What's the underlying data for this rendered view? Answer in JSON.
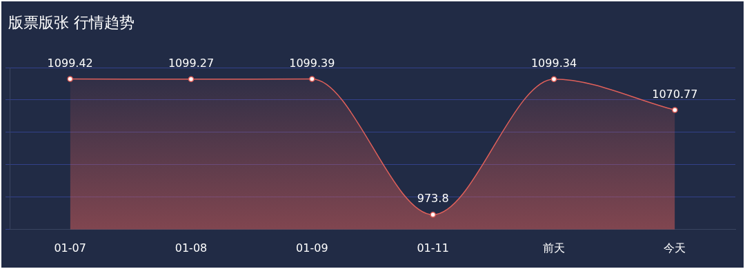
{
  "chart_data": {
    "type": "area",
    "title": "版票版张 行情趋势",
    "categories": [
      "01-07",
      "01-08",
      "01-09",
      "01-11",
      "前天",
      "今天"
    ],
    "series": [
      {
        "color": "#e0605a",
        "values": [
          1099.42,
          1099.27,
          1099.39,
          973.8,
          1099.34,
          1070.77
        ]
      }
    ],
    "ylim": [
      960,
      1110
    ],
    "yticks": [
      {
        "value": 960,
        "label": null
      },
      {
        "value": 990,
        "label": null
      },
      {
        "value": 1020,
        "label": null
      },
      {
        "value": 1050,
        "label": null
      },
      {
        "value": 1080,
        "label": null
      },
      {
        "value": 1110,
        "label": null
      }
    ],
    "tick_labels": "x",
    "grid": "y",
    "marker": "circle",
    "data_labels": true
  }
}
